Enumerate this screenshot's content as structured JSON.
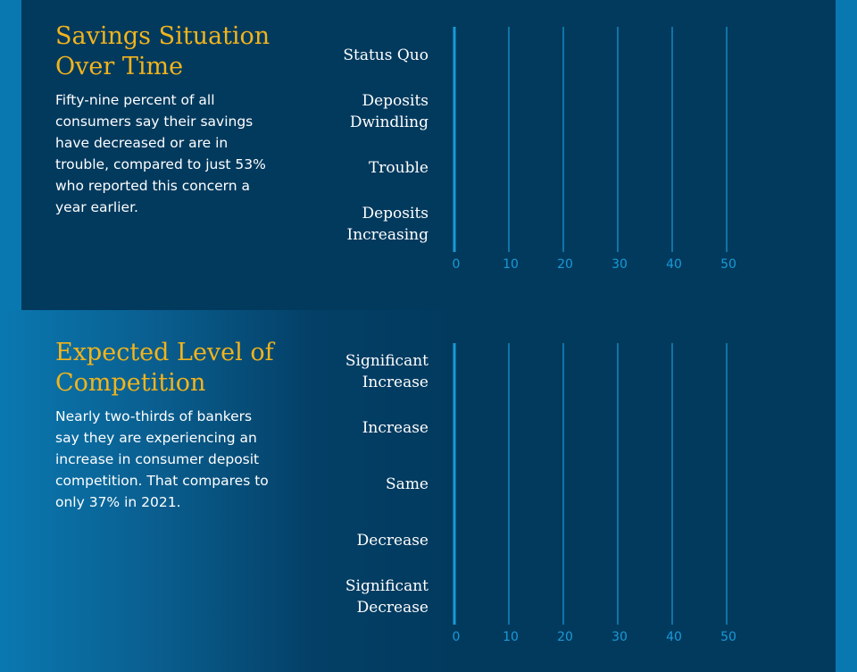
{
  "chart_data": [
    {
      "type": "bar",
      "orientation": "horizontal",
      "title": "Savings Situation Over Time",
      "description": "Fifty-nine percent of all consumers say their savings have decreased or are in trouble, compared to just 53% who reported this concern a year earlier.",
      "categories": [
        "Status Quo",
        "Deposits Dwindling",
        "Trouble",
        "Deposits Increasing"
      ],
      "xlim": [
        0,
        50
      ],
      "xticks": [
        0,
        10,
        20,
        30,
        40,
        50
      ],
      "grid": true,
      "color": "#1a9ad6"
    },
    {
      "type": "bar",
      "orientation": "horizontal",
      "title": "Expected Level of Competition",
      "description": "Nearly two-thirds of bankers say they are experiencing an increase in consumer deposit competition. That compares to only 37% in 2021.",
      "categories": [
        "Significant Increase",
        "Increase",
        "Same",
        "Decrease",
        "Significant Decrease"
      ],
      "xlim": [
        0,
        50
      ],
      "xticks": [
        0,
        10,
        20,
        30,
        40,
        50
      ],
      "grid": true,
      "color": "#1a9ad6"
    }
  ]
}
